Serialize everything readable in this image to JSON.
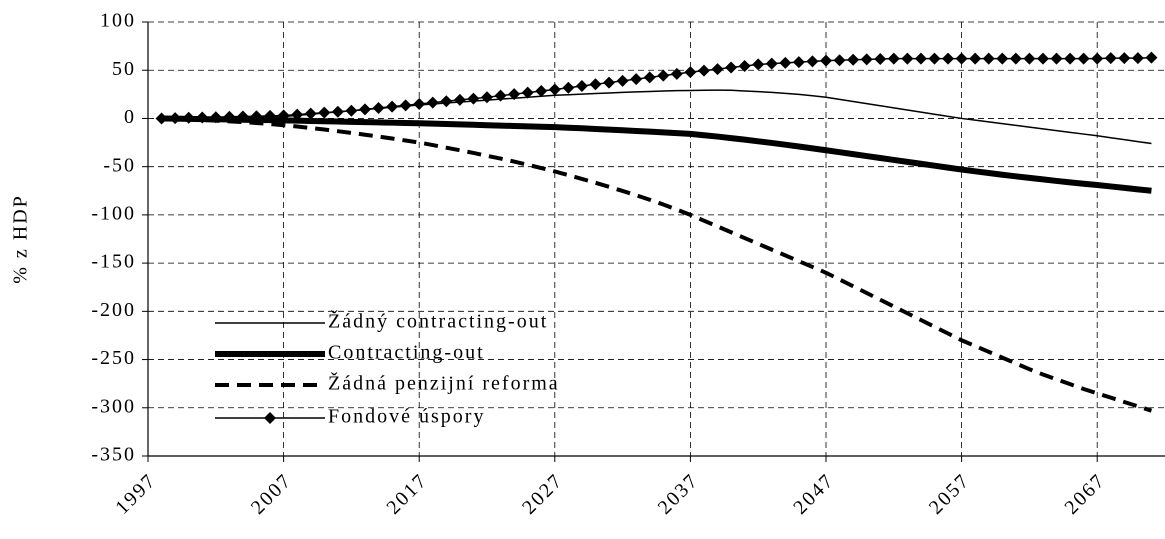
{
  "chart_data": {
    "type": "line",
    "y_label": "% z HDP",
    "x": [
      1998,
      1999,
      2000,
      2001,
      2002,
      2003,
      2004,
      2005,
      2006,
      2007,
      2008,
      2009,
      2010,
      2011,
      2012,
      2013,
      2014,
      2015,
      2016,
      2017,
      2018,
      2019,
      2020,
      2021,
      2022,
      2023,
      2024,
      2025,
      2026,
      2027,
      2028,
      2029,
      2030,
      2031,
      2032,
      2033,
      2034,
      2035,
      2036,
      2037,
      2038,
      2039,
      2040,
      2041,
      2042,
      2043,
      2044,
      2045,
      2046,
      2047,
      2048,
      2049,
      2050,
      2051,
      2052,
      2053,
      2054,
      2055,
      2056,
      2057,
      2058,
      2059,
      2060,
      2061,
      2062,
      2063,
      2064,
      2065,
      2066,
      2067,
      2068,
      2069,
      2070,
      2071
    ],
    "series": [
      {
        "name": "Žádný contracting-out",
        "color": "#000000",
        "width": 1.5,
        "dash": "solid",
        "values": [
          0,
          0.2,
          0.4,
          0.7,
          0.9,
          1.1,
          1.3,
          1.6,
          1.8,
          2,
          3.2,
          4.4,
          5.6,
          6.8,
          8,
          9.2,
          10.4,
          11.6,
          12.8,
          14,
          15,
          16,
          17,
          18,
          19,
          20,
          21,
          22,
          23,
          24,
          24.6,
          25.2,
          25.8,
          26.4,
          27,
          27.5,
          28,
          28.4,
          28.8,
          29,
          29.2,
          29.3,
          29.2,
          28.5,
          27.8,
          27,
          26,
          25,
          23.5,
          22,
          19.8,
          17.6,
          15.4,
          13.2,
          11,
          8.8,
          6.6,
          4.4,
          2.2,
          0,
          -1.8,
          -3.6,
          -5.4,
          -7.2,
          -9,
          -10.8,
          -12.6,
          -14.4,
          -16.2,
          -18,
          -20,
          -22,
          -24,
          -26
        ]
      },
      {
        "name": "Contracting-out",
        "color": "#000000",
        "width": 6,
        "dash": "solid",
        "values": [
          0,
          -0.2,
          -0.4,
          -0.7,
          -0.9,
          -1.1,
          -1.3,
          -1.6,
          -1.8,
          -2,
          -2.3,
          -2.6,
          -2.9,
          -3.2,
          -3.5,
          -3.8,
          -4.1,
          -4.4,
          -4.7,
          -5,
          -5.4,
          -5.8,
          -6.2,
          -6.6,
          -7,
          -7.4,
          -7.8,
          -8.2,
          -8.6,
          -9,
          -9.6,
          -10.2,
          -10.9,
          -11.6,
          -12.3,
          -13,
          -13.7,
          -14.5,
          -15.2,
          -16,
          -17.4,
          -18.8,
          -20.4,
          -22,
          -23.7,
          -25.4,
          -27.2,
          -29.1,
          -31,
          -33,
          -35,
          -37,
          -39,
          -41,
          -43,
          -45,
          -47,
          -49,
          -51,
          -53,
          -54.8,
          -56.6,
          -58.4,
          -60,
          -61.6,
          -63.2,
          -64.8,
          -66.3,
          -67.7,
          -69,
          -70.5,
          -72,
          -73.5,
          -75
        ]
      },
      {
        "name": "Žádná penzijní reforma",
        "color": "#000000",
        "width": 4,
        "dash": "dashed",
        "values": [
          0,
          -0.5,
          -1,
          -1.6,
          -2.3,
          -3,
          -3.8,
          -4.7,
          -5.8,
          -7,
          -8.4,
          -9.9,
          -11.5,
          -13.2,
          -15,
          -16.9,
          -18.8,
          -20.8,
          -22.9,
          -25,
          -27.6,
          -30.3,
          -33,
          -35.8,
          -38.7,
          -41.6,
          -44.7,
          -48,
          -51.4,
          -55,
          -58.8,
          -62.7,
          -66.7,
          -70.9,
          -75.2,
          -79.6,
          -84.3,
          -89.2,
          -94.5,
          -100,
          -106,
          -112,
          -118,
          -124,
          -130,
          -136,
          -142,
          -148,
          -154,
          -160,
          -167,
          -174,
          -181,
          -188,
          -195,
          -202,
          -209,
          -216,
          -223,
          -230,
          -236,
          -242,
          -248,
          -254,
          -260,
          -265.5,
          -270.5,
          -275.5,
          -280.5,
          -285,
          -289.5,
          -294,
          -298.5,
          -303
        ]
      },
      {
        "name": "Fondové úspory",
        "color": "#000000",
        "width": 1.5,
        "dash": "solid",
        "marker": "diamond",
        "values": [
          0,
          0.3,
          0.7,
          1,
          1.3,
          1.7,
          2,
          2.3,
          2.7,
          3,
          4,
          5,
          6,
          7,
          8,
          9.4,
          10.8,
          12.2,
          13.6,
          15,
          16.4,
          17.8,
          19.2,
          20.6,
          22,
          23.6,
          25.2,
          26.8,
          28.4,
          30,
          31.8,
          33.6,
          35.4,
          37.2,
          39,
          40.8,
          42.6,
          44.4,
          46.2,
          48,
          49.6,
          51.2,
          52.8,
          54.4,
          56,
          56.8,
          57.6,
          58.4,
          59.2,
          60,
          60.4,
          60.8,
          61.2,
          61.6,
          62,
          62,
          62,
          62,
          62,
          62,
          62,
          62,
          62,
          62,
          62,
          62,
          62,
          62,
          62,
          62,
          62.5,
          62.5,
          62.5,
          63
        ]
      }
    ],
    "xlim": [
      1997,
      2072
    ],
    "xticks": [
      1997,
      2007,
      2017,
      2027,
      2037,
      2047,
      2057,
      2067
    ],
    "ylim": [
      -350,
      100
    ],
    "yticks": [
      100,
      50,
      0,
      -50,
      -100,
      -150,
      -200,
      -250,
      -300,
      -350
    ],
    "grid": true,
    "legend": "lower left"
  }
}
